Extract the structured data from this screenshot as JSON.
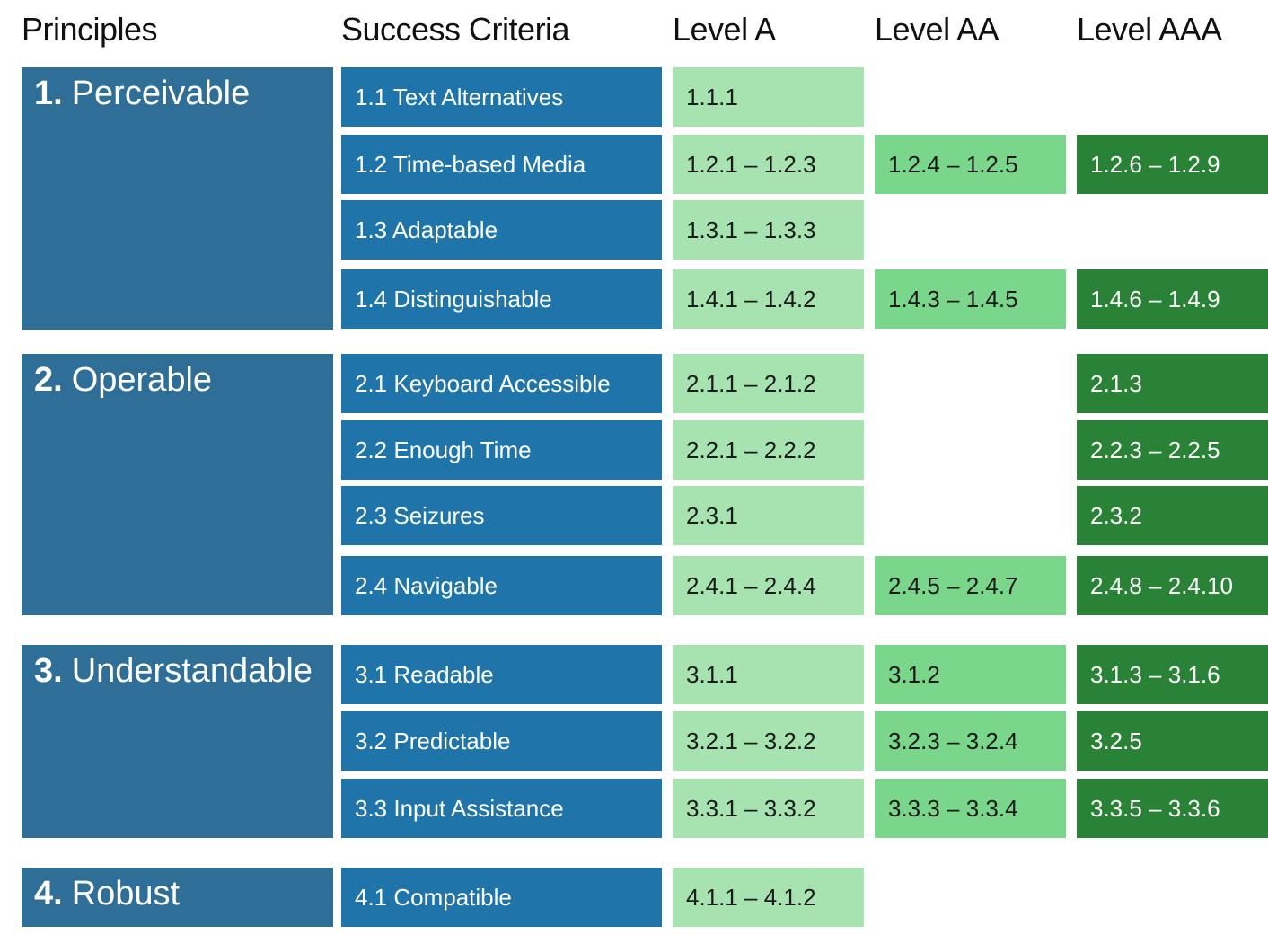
{
  "headers": {
    "principles": "Principles",
    "criteria": "Success Criteria",
    "level_a": "Level A",
    "level_aa": "Level AA",
    "level_aaa": "Level AAA"
  },
  "colors": {
    "principle": "#2f6f97",
    "criteria": "#1f75a9",
    "level_a": "#a6e3b0",
    "level_aa": "#7ad68a",
    "level_aaa": "#2a8237"
  },
  "principles": [
    {
      "number": "1.",
      "name": "Perceivable",
      "guidelines": [
        {
          "label": "1.1 Text Alternatives",
          "a": "1.1.1",
          "aa": "",
          "aaa": ""
        },
        {
          "label": "1.2 Time-based Media",
          "a": "1.2.1 – 1.2.3",
          "aa": "1.2.4 – 1.2.5",
          "aaa": "1.2.6 – 1.2.9"
        },
        {
          "label": "1.3 Adaptable",
          "a": "1.3.1 – 1.3.3",
          "aa": "",
          "aaa": ""
        },
        {
          "label": "1.4 Distinguishable",
          "a": "1.4.1 – 1.4.2",
          "aa": "1.4.3 – 1.4.5",
          "aaa": "1.4.6 – 1.4.9"
        }
      ]
    },
    {
      "number": "2.",
      "name": "Operable",
      "guidelines": [
        {
          "label": "2.1 Keyboard Accessible",
          "a": "2.1.1 – 2.1.2",
          "aa": "",
          "aaa": "2.1.3"
        },
        {
          "label": "2.2 Enough Time",
          "a": "2.2.1 – 2.2.2",
          "aa": "",
          "aaa": "2.2.3 – 2.2.5"
        },
        {
          "label": "2.3 Seizures",
          "a": "2.3.1",
          "aa": "",
          "aaa": "2.3.2"
        },
        {
          "label": "2.4 Navigable",
          "a": "2.4.1 – 2.4.4",
          "aa": "2.4.5 – 2.4.7",
          "aaa": "2.4.8 – 2.4.10"
        }
      ]
    },
    {
      "number": "3.",
      "name": "Understandable",
      "guidelines": [
        {
          "label": "3.1 Readable",
          "a": "3.1.1",
          "aa": "3.1.2",
          "aaa": "3.1.3 – 3.1.6"
        },
        {
          "label": "3.2 Predictable",
          "a": "3.2.1 – 3.2.2",
          "aa": "3.2.3 – 3.2.4",
          "aaa": "3.2.5"
        },
        {
          "label": "3.3 Input Assistance",
          "a": "3.3.1 – 3.3.2",
          "aa": "3.3.3 – 3.3.4",
          "aaa": "3.3.5 – 3.3.6"
        }
      ]
    },
    {
      "number": "4.",
      "name": "Robust",
      "guidelines": [
        {
          "label": "4.1 Compatible",
          "a": "4.1.1 – 4.1.2",
          "aa": "",
          "aaa": ""
        }
      ]
    }
  ]
}
